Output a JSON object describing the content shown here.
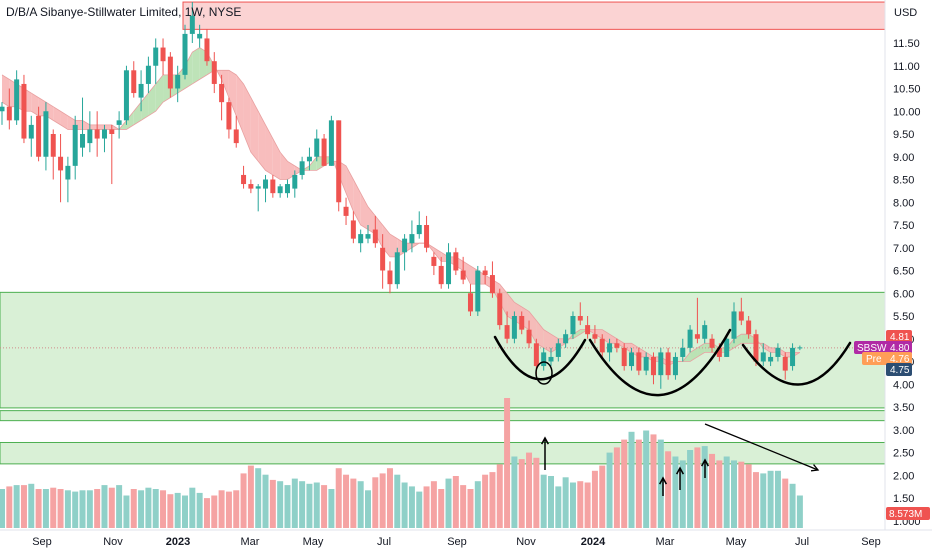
{
  "header": {
    "title": "D/B/A Sibanye-Stillwater Limited, 1W, NYSE"
  },
  "price_axis": {
    "currency": "USD"
  },
  "colors": {
    "up": "#26a69a",
    "down": "#ef5350",
    "vol_up": "#8fd0c8",
    "vol_down": "#f5a3a3",
    "cloud_bear": "#f7b6b6",
    "cloud_bull": "#b7e0b0",
    "zone_green": "#d9f0d6",
    "zone_green_line": "#4caf50",
    "zone_red": "#fbd3d3",
    "zone_red_line": "#ef5350",
    "sbsw_tag": "#b02aa5",
    "pre_tag": "#ff9e57",
    "last_tag": "#ef5350",
    "low_tag": "#2c4d72"
  },
  "tags": {
    "last_price": "4.81",
    "symbol_label": "SBSW",
    "symbol_price": "4.80",
    "pre_label": "Pre",
    "pre_price": "4.76",
    "low_price": "4.75",
    "volume_value": "8.573M"
  },
  "chart_data": {
    "type": "candlestick",
    "title": "D/B/A Sibanye-Stillwater Limited, 1W, NYSE",
    "timeframe": "1W",
    "y_axis": {
      "unit": "USD",
      "range": [
        0.9,
        12.5
      ],
      "scale": "linear",
      "ticks": [
        "11.50",
        "11.00",
        "10.50",
        "10.00",
        "9.50",
        "9.00",
        "8.50",
        "8.00",
        "7.50",
        "7.00",
        "6.50",
        "6.00",
        "5.50",
        "5.00",
        "4.50",
        "4.00",
        "3.50",
        "3.00",
        "2.50",
        "2.00",
        "1.50",
        "1.000"
      ]
    },
    "x_axis": {
      "ticks": [
        "Sep",
        "Nov",
        "2023",
        "Mar",
        "May",
        "Jul",
        "Sep",
        "Nov",
        "2024",
        "Mar",
        "May",
        "Jul",
        "Sep"
      ],
      "bold_ticks": [
        "2023",
        "2024"
      ]
    },
    "candles": [
      {
        "o": 10.0,
        "h": 10.2,
        "l": 9.7,
        "c": 10.1
      },
      {
        "o": 10.1,
        "h": 10.5,
        "l": 9.6,
        "c": 9.8
      },
      {
        "o": 9.8,
        "h": 10.9,
        "l": 9.7,
        "c": 10.7
      },
      {
        "o": 10.6,
        "h": 10.8,
        "l": 9.3,
        "c": 9.4
      },
      {
        "o": 9.4,
        "h": 9.9,
        "l": 9.0,
        "c": 9.7
      },
      {
        "o": 9.9,
        "h": 10.1,
        "l": 8.9,
        "c": 9.0
      },
      {
        "o": 9.0,
        "h": 10.2,
        "l": 8.7,
        "c": 10.0
      },
      {
        "o": 9.5,
        "h": 9.6,
        "l": 8.5,
        "c": 9.0
      },
      {
        "o": 9.0,
        "h": 9.5,
        "l": 8.0,
        "c": 8.7
      },
      {
        "o": 8.5,
        "h": 9.0,
        "l": 8.0,
        "c": 8.8
      },
      {
        "o": 8.8,
        "h": 9.9,
        "l": 8.5,
        "c": 9.7
      },
      {
        "o": 9.2,
        "h": 10.3,
        "l": 9.0,
        "c": 9.5
      },
      {
        "o": 9.3,
        "h": 10.0,
        "l": 9.1,
        "c": 9.6
      },
      {
        "o": 9.6,
        "h": 10.0,
        "l": 9.0,
        "c": 9.4
      },
      {
        "o": 9.4,
        "h": 9.7,
        "l": 9.1,
        "c": 9.6
      },
      {
        "o": 9.6,
        "h": 9.7,
        "l": 8.4,
        "c": 9.5
      },
      {
        "o": 9.7,
        "h": 10.0,
        "l": 9.4,
        "c": 9.8
      },
      {
        "o": 9.8,
        "h": 11.0,
        "l": 9.7,
        "c": 10.9
      },
      {
        "o": 10.9,
        "h": 11.1,
        "l": 10.3,
        "c": 10.4
      },
      {
        "o": 10.3,
        "h": 10.9,
        "l": 10.0,
        "c": 10.6
      },
      {
        "o": 10.6,
        "h": 11.2,
        "l": 10.4,
        "c": 11.0
      },
      {
        "o": 11.0,
        "h": 11.6,
        "l": 10.6,
        "c": 11.4
      },
      {
        "o": 11.4,
        "h": 11.6,
        "l": 10.8,
        "c": 11.1
      },
      {
        "o": 11.2,
        "h": 11.3,
        "l": 10.3,
        "c": 10.5
      },
      {
        "o": 10.5,
        "h": 11.0,
        "l": 10.2,
        "c": 10.8
      },
      {
        "o": 10.8,
        "h": 11.9,
        "l": 10.7,
        "c": 11.7
      },
      {
        "o": 11.7,
        "h": 12.4,
        "l": 11.5,
        "c": 12.1
      },
      {
        "o": 11.6,
        "h": 11.9,
        "l": 11.4,
        "c": 11.7
      },
      {
        "o": 11.6,
        "h": 11.8,
        "l": 11.0,
        "c": 11.1
      },
      {
        "o": 11.1,
        "h": 11.3,
        "l": 10.4,
        "c": 10.6
      },
      {
        "o": 10.6,
        "h": 10.8,
        "l": 9.8,
        "c": 10.2
      },
      {
        "o": 10.2,
        "h": 10.3,
        "l": 9.4,
        "c": 9.6
      },
      {
        "o": 9.6,
        "h": 9.9,
        "l": 9.2,
        "c": 9.3
      },
      {
        "o": 8.6,
        "h": 8.8,
        "l": 8.3,
        "c": 8.4
      },
      {
        "o": 8.4,
        "h": 8.5,
        "l": 8.2,
        "c": 8.3
      },
      {
        "o": 8.3,
        "h": 8.4,
        "l": 7.8,
        "c": 8.35
      },
      {
        "o": 8.3,
        "h": 8.6,
        "l": 8.0,
        "c": 8.5
      },
      {
        "o": 8.5,
        "h": 8.6,
        "l": 8.1,
        "c": 8.2
      },
      {
        "o": 8.2,
        "h": 8.4,
        "l": 8.1,
        "c": 8.35
      },
      {
        "o": 8.2,
        "h": 8.5,
        "l": 8.1,
        "c": 8.4
      },
      {
        "o": 8.3,
        "h": 8.7,
        "l": 8.1,
        "c": 8.6
      },
      {
        "o": 8.6,
        "h": 9.0,
        "l": 8.5,
        "c": 8.9
      },
      {
        "o": 8.9,
        "h": 9.2,
        "l": 8.7,
        "c": 9.0
      },
      {
        "o": 9.0,
        "h": 9.6,
        "l": 8.9,
        "c": 9.4
      },
      {
        "o": 9.4,
        "h": 9.5,
        "l": 8.8,
        "c": 8.8
      },
      {
        "o": 8.8,
        "h": 9.9,
        "l": 8.8,
        "c": 9.8
      },
      {
        "o": 9.8,
        "h": 9.8,
        "l": 7.8,
        "c": 8.0
      },
      {
        "o": 7.9,
        "h": 8.1,
        "l": 7.5,
        "c": 7.7
      },
      {
        "o": 7.6,
        "h": 7.8,
        "l": 7.1,
        "c": 7.2
      },
      {
        "o": 7.1,
        "h": 7.4,
        "l": 6.9,
        "c": 7.3
      },
      {
        "o": 7.2,
        "h": 7.5,
        "l": 7.1,
        "c": 7.3
      },
      {
        "o": 7.4,
        "h": 7.7,
        "l": 7.0,
        "c": 7.1
      },
      {
        "o": 7.0,
        "h": 7.3,
        "l": 6.1,
        "c": 6.5
      },
      {
        "o": 6.5,
        "h": 6.7,
        "l": 6.0,
        "c": 6.2
      },
      {
        "o": 6.2,
        "h": 7.0,
        "l": 6.1,
        "c": 6.9
      },
      {
        "o": 6.9,
        "h": 7.3,
        "l": 6.5,
        "c": 7.2
      },
      {
        "o": 7.1,
        "h": 7.6,
        "l": 6.9,
        "c": 7.3
      },
      {
        "o": 7.3,
        "h": 7.8,
        "l": 7.2,
        "c": 7.5
      },
      {
        "o": 7.5,
        "h": 7.7,
        "l": 6.9,
        "c": 7.0
      },
      {
        "o": 6.8,
        "h": 6.9,
        "l": 6.4,
        "c": 6.6
      },
      {
        "o": 6.6,
        "h": 6.8,
        "l": 6.1,
        "c": 6.2
      },
      {
        "o": 6.2,
        "h": 7.1,
        "l": 6.1,
        "c": 6.9
      },
      {
        "o": 6.9,
        "h": 7.0,
        "l": 6.4,
        "c": 6.5
      },
      {
        "o": 6.5,
        "h": 6.8,
        "l": 6.2,
        "c": 6.3
      },
      {
        "o": 6.0,
        "h": 6.2,
        "l": 5.5,
        "c": 5.6
      },
      {
        "o": 5.6,
        "h": 6.6,
        "l": 5.5,
        "c": 6.5
      },
      {
        "o": 6.5,
        "h": 6.6,
        "l": 6.2,
        "c": 6.4
      },
      {
        "o": 6.4,
        "h": 6.7,
        "l": 5.9,
        "c": 6.0
      },
      {
        "o": 6.0,
        "h": 6.1,
        "l": 5.2,
        "c": 5.3
      },
      {
        "o": 5.3,
        "h": 5.6,
        "l": 4.9,
        "c": 5.0
      },
      {
        "o": 5.0,
        "h": 5.6,
        "l": 4.9,
        "c": 5.5
      },
      {
        "o": 5.5,
        "h": 5.6,
        "l": 5.1,
        "c": 5.2
      },
      {
        "o": 5.2,
        "h": 5.4,
        "l": 4.8,
        "c": 4.9
      },
      {
        "o": 4.9,
        "h": 5.0,
        "l": 4.2,
        "c": 4.4
      },
      {
        "o": 4.4,
        "h": 4.8,
        "l": 4.3,
        "c": 4.7
      },
      {
        "o": 4.5,
        "h": 4.8,
        "l": 4.4,
        "c": 4.6
      },
      {
        "o": 4.6,
        "h": 5.0,
        "l": 4.5,
        "c": 4.9
      },
      {
        "o": 4.9,
        "h": 5.2,
        "l": 4.8,
        "c": 5.1
      },
      {
        "o": 5.1,
        "h": 5.6,
        "l": 5.0,
        "c": 5.5
      },
      {
        "o": 5.5,
        "h": 5.8,
        "l": 5.3,
        "c": 5.4
      },
      {
        "o": 5.3,
        "h": 5.5,
        "l": 5.0,
        "c": 5.1
      },
      {
        "o": 5.1,
        "h": 5.3,
        "l": 4.9,
        "c": 5.0
      },
      {
        "o": 5.0,
        "h": 5.1,
        "l": 4.6,
        "c": 4.7
      },
      {
        "o": 4.7,
        "h": 5.0,
        "l": 4.5,
        "c": 4.9
      },
      {
        "o": 4.9,
        "h": 5.0,
        "l": 4.7,
        "c": 4.8
      },
      {
        "o": 4.8,
        "h": 4.9,
        "l": 4.3,
        "c": 4.4
      },
      {
        "o": 4.4,
        "h": 4.8,
        "l": 4.3,
        "c": 4.7
      },
      {
        "o": 4.7,
        "h": 4.8,
        "l": 4.2,
        "c": 4.3
      },
      {
        "o": 4.3,
        "h": 4.7,
        "l": 4.2,
        "c": 4.6
      },
      {
        "o": 4.6,
        "h": 4.7,
        "l": 4.0,
        "c": 4.2
      },
      {
        "o": 4.2,
        "h": 4.8,
        "l": 3.9,
        "c": 4.7
      },
      {
        "o": 4.7,
        "h": 4.8,
        "l": 4.1,
        "c": 4.2
      },
      {
        "o": 4.2,
        "h": 4.7,
        "l": 4.1,
        "c": 4.6
      },
      {
        "o": 4.6,
        "h": 5.0,
        "l": 4.5,
        "c": 4.8
      },
      {
        "o": 4.8,
        "h": 5.3,
        "l": 4.7,
        "c": 5.2
      },
      {
        "o": 5.1,
        "h": 5.9,
        "l": 4.9,
        "c": 5.0
      },
      {
        "o": 5.0,
        "h": 5.4,
        "l": 4.9,
        "c": 5.3
      },
      {
        "o": 5.0,
        "h": 5.1,
        "l": 4.7,
        "c": 4.8
      },
      {
        "o": 4.8,
        "h": 4.9,
        "l": 4.5,
        "c": 4.6
      },
      {
        "o": 4.6,
        "h": 5.1,
        "l": 4.6,
        "c": 5.0
      },
      {
        "o": 5.0,
        "h": 5.8,
        "l": 4.9,
        "c": 5.6
      },
      {
        "o": 5.6,
        "h": 5.9,
        "l": 5.3,
        "c": 5.4
      },
      {
        "o": 5.4,
        "h": 5.5,
        "l": 5.0,
        "c": 5.1
      },
      {
        "o": 5.1,
        "h": 5.2,
        "l": 4.4,
        "c": 4.5
      },
      {
        "o": 4.5,
        "h": 4.9,
        "l": 4.4,
        "c": 4.7
      },
      {
        "o": 4.5,
        "h": 4.7,
        "l": 4.4,
        "c": 4.6
      },
      {
        "o": 4.6,
        "h": 4.9,
        "l": 4.5,
        "c": 4.8
      },
      {
        "o": 4.6,
        "h": 4.7,
        "l": 4.1,
        "c": 4.3
      },
      {
        "o": 4.4,
        "h": 4.9,
        "l": 4.3,
        "c": 4.8
      },
      {
        "o": 4.8,
        "h": 4.85,
        "l": 4.75,
        "c": 4.81
      }
    ],
    "cloud": {
      "fast": [
        10.2,
        10.1,
        10.1,
        10.0,
        10.0,
        9.9,
        9.9,
        9.8,
        9.7,
        9.6,
        9.6,
        9.6,
        9.6,
        9.6,
        9.6,
        9.6,
        9.6,
        9.8,
        10.0,
        10.2,
        10.4,
        10.6,
        10.8,
        10.8,
        10.8,
        11.0,
        11.3,
        11.4,
        11.3,
        11.0,
        10.7,
        10.3,
        9.9,
        9.5,
        9.1,
        8.9,
        8.7,
        8.6,
        8.5,
        8.5,
        8.6,
        8.7,
        8.8,
        9.0,
        9.0,
        9.0,
        8.6,
        8.2,
        7.8,
        7.5,
        7.4,
        7.3,
        7.0,
        6.8,
        6.8,
        6.9,
        7.0,
        7.1,
        7.1,
        6.9,
        6.7,
        6.7,
        6.6,
        6.5,
        6.2,
        6.2,
        6.2,
        6.1,
        5.8,
        5.5,
        5.4,
        5.3,
        5.2,
        4.9,
        4.8,
        4.7,
        4.8,
        4.9,
        5.1,
        5.2,
        5.2,
        5.1,
        5.0,
        4.9,
        4.9,
        4.8,
        4.7,
        4.6,
        4.6,
        4.5,
        4.5,
        4.4,
        4.5,
        4.5,
        4.7,
        4.8,
        4.9,
        4.9,
        4.8,
        4.8,
        5.0,
        5.1,
        5.1,
        5.0,
        4.8,
        4.7,
        4.7,
        4.6,
        4.6,
        4.7
      ],
      "slow": [
        10.8,
        10.7,
        10.6,
        10.5,
        10.4,
        10.3,
        10.2,
        10.1,
        10.0,
        9.9,
        9.8,
        9.8,
        9.7,
        9.7,
        9.7,
        9.7,
        9.6,
        9.6,
        9.7,
        9.8,
        9.9,
        10.0,
        10.2,
        10.3,
        10.4,
        10.5,
        10.6,
        10.7,
        10.8,
        10.9,
        10.9,
        10.9,
        10.8,
        10.6,
        10.3,
        10.0,
        9.7,
        9.4,
        9.1,
        8.9,
        8.8,
        8.7,
        8.7,
        8.7,
        8.8,
        8.9,
        8.9,
        8.8,
        8.5,
        8.2,
        7.9,
        7.7,
        7.5,
        7.3,
        7.2,
        7.1,
        7.1,
        7.1,
        7.1,
        7.0,
        6.9,
        6.8,
        6.8,
        6.7,
        6.6,
        6.5,
        6.4,
        6.3,
        6.2,
        6.0,
        5.8,
        5.7,
        5.6,
        5.4,
        5.2,
        5.1,
        5.0,
        5.0,
        5.0,
        5.1,
        5.2,
        5.2,
        5.2,
        5.1,
        5.0,
        4.9,
        4.9,
        4.8,
        4.7,
        4.6,
        4.6,
        4.5,
        4.5,
        4.5,
        4.5,
        4.6,
        4.7,
        4.7,
        4.7,
        4.7,
        4.8,
        4.9,
        4.9,
        4.9,
        4.9,
        4.8,
        4.8,
        4.7,
        4.7,
        4.7
      ]
    },
    "volume": [
      0.3,
      0.32,
      0.33,
      0.33,
      0.34,
      0.3,
      0.3,
      0.31,
      0.3,
      0.29,
      0.28,
      0.29,
      0.29,
      0.3,
      0.33,
      0.31,
      0.33,
      0.25,
      0.3,
      0.29,
      0.31,
      0.3,
      0.29,
      0.26,
      0.27,
      0.25,
      0.31,
      0.27,
      0.23,
      0.25,
      0.29,
      0.28,
      0.29,
      0.42,
      0.48,
      0.46,
      0.41,
      0.37,
      0.36,
      0.33,
      0.38,
      0.36,
      0.34,
      0.35,
      0.33,
      0.3,
      0.46,
      0.41,
      0.38,
      0.36,
      0.29,
      0.39,
      0.42,
      0.46,
      0.41,
      0.35,
      0.32,
      0.28,
      0.32,
      0.36,
      0.3,
      0.38,
      0.4,
      0.33,
      0.3,
      0.36,
      0.41,
      0.43,
      0.49,
      1.0,
      0.55,
      0.53,
      0.58,
      0.54,
      0.41,
      0.4,
      0.32,
      0.39,
      0.35,
      0.36,
      0.35,
      0.44,
      0.48,
      0.58,
      0.62,
      0.68,
      0.74,
      0.68,
      0.75,
      0.72,
      0.68,
      0.59,
      0.55,
      0.52,
      0.6,
      0.62,
      0.63,
      0.57,
      0.52,
      0.55,
      0.52,
      0.51,
      0.49,
      0.43,
      0.42,
      0.44,
      0.44,
      0.38,
      0.34,
      0.25
    ],
    "zones": [
      {
        "type": "resistance",
        "from": 11.8,
        "to": 12.4
      },
      {
        "type": "support",
        "from": 3.48,
        "to": 6.02
      },
      {
        "type": "support",
        "from": 3.2,
        "to": 3.42
      },
      {
        "type": "support",
        "from": 2.25,
        "to": 2.72
      }
    ],
    "horizontal_line": 4.8,
    "annotations": [
      "arc-rounded-bottom-1",
      "arc-rounded-bottom-2",
      "arc-rounded-bottom-3",
      "circle-marker",
      "up-arrow-volume",
      "arrows-volume-x3",
      "down-trend-arrow-volume"
    ]
  }
}
